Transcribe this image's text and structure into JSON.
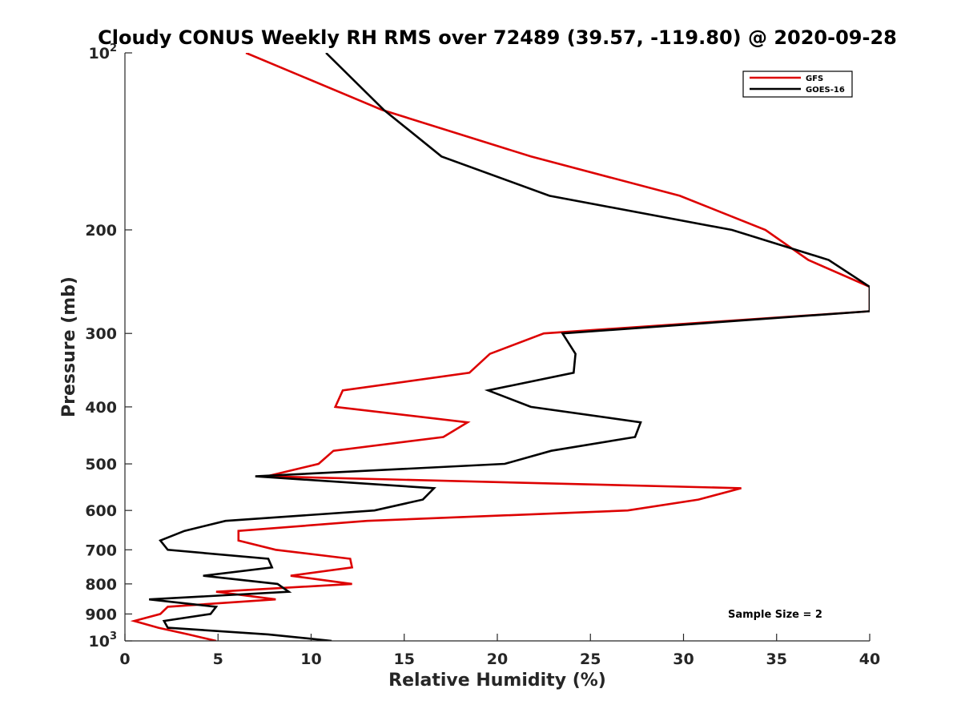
{
  "chart_data": {
    "type": "line",
    "title": "Cloudy CONUS Weekly RH RMS over 72489 (39.57, -119.80) @ 2020-09-28",
    "xlabel": "Relative Humidity (%)",
    "ylabel": "Pressure (mb)",
    "xlim": [
      0,
      40
    ],
    "ylim": [
      100,
      1000
    ],
    "y_scale": "log",
    "y_reversed": true,
    "grid": false,
    "legend_position": "top-right",
    "x_ticks": [
      0,
      5,
      10,
      15,
      20,
      25,
      30,
      35,
      40
    ],
    "x_tick_labels": [
      "0",
      "5",
      "10",
      "15",
      "20",
      "25",
      "30",
      "35",
      "40"
    ],
    "y_ticks": [
      {
        "value": 100,
        "label": "10",
        "sup": "2"
      },
      {
        "value": 200,
        "label": "200",
        "sup": ""
      },
      {
        "value": 300,
        "label": "300",
        "sup": ""
      },
      {
        "value": 400,
        "label": "400",
        "sup": ""
      },
      {
        "value": 500,
        "label": "500",
        "sup": ""
      },
      {
        "value": 600,
        "label": "600",
        "sup": ""
      },
      {
        "value": 700,
        "label": "700",
        "sup": ""
      },
      {
        "value": 800,
        "label": "800",
        "sup": ""
      },
      {
        "value": 900,
        "label": "900",
        "sup": ""
      },
      {
        "value": 1000,
        "label": "10",
        "sup": "3"
      }
    ],
    "annotation": "Sample Size = 2",
    "series": [
      {
        "name": "GFS",
        "color": "#dd0000",
        "points": [
          [
            6.5,
            100
          ],
          [
            13.8,
            125
          ],
          [
            21.8,
            150
          ],
          [
            29.8,
            175
          ],
          [
            34.4,
            200
          ],
          [
            36.7,
            225
          ],
          [
            40.0,
            250
          ],
          [
            40.0,
            275
          ],
          [
            22.5,
            300
          ],
          [
            19.6,
            325
          ],
          [
            18.5,
            350
          ],
          [
            11.7,
            375
          ],
          [
            11.3,
            400
          ],
          [
            18.4,
            425
          ],
          [
            17.1,
            450
          ],
          [
            11.2,
            475
          ],
          [
            10.4,
            500
          ],
          [
            7.6,
            525
          ],
          [
            33.1,
            550
          ],
          [
            30.8,
            575
          ],
          [
            27.0,
            600
          ],
          [
            13.0,
            625
          ],
          [
            6.1,
            650
          ],
          [
            6.1,
            675
          ],
          [
            8.1,
            700
          ],
          [
            12.1,
            725
          ],
          [
            12.2,
            750
          ],
          [
            8.9,
            775
          ],
          [
            12.2,
            800
          ],
          [
            4.9,
            825
          ],
          [
            8.1,
            850
          ],
          [
            2.3,
            875
          ],
          [
            1.9,
            900
          ],
          [
            0.5,
            925
          ],
          [
            1.8,
            950
          ],
          [
            3.4,
            975
          ],
          [
            4.9,
            1000
          ]
        ]
      },
      {
        "name": "GOES-16",
        "color": "#000000",
        "points": [
          [
            10.8,
            100
          ],
          [
            13.9,
            125
          ],
          [
            17.0,
            150
          ],
          [
            22.8,
            175
          ],
          [
            32.6,
            200
          ],
          [
            37.8,
            225
          ],
          [
            40.0,
            250
          ],
          [
            40.0,
            275
          ],
          [
            23.5,
            300
          ],
          [
            24.2,
            325
          ],
          [
            24.1,
            350
          ],
          [
            19.5,
            375
          ],
          [
            21.8,
            400
          ],
          [
            27.7,
            425
          ],
          [
            27.4,
            450
          ],
          [
            22.9,
            475
          ],
          [
            20.4,
            500
          ],
          [
            7.0,
            525
          ],
          [
            16.6,
            550
          ],
          [
            16.0,
            575
          ],
          [
            13.4,
            600
          ],
          [
            5.4,
            625
          ],
          [
            3.2,
            650
          ],
          [
            1.9,
            675
          ],
          [
            2.3,
            700
          ],
          [
            7.7,
            725
          ],
          [
            7.9,
            750
          ],
          [
            4.2,
            775
          ],
          [
            8.2,
            800
          ],
          [
            8.8,
            825
          ],
          [
            1.3,
            850
          ],
          [
            4.9,
            875
          ],
          [
            4.6,
            900
          ],
          [
            2.1,
            925
          ],
          [
            2.3,
            950
          ],
          [
            7.7,
            975
          ],
          [
            11.1,
            1000
          ]
        ]
      }
    ]
  }
}
